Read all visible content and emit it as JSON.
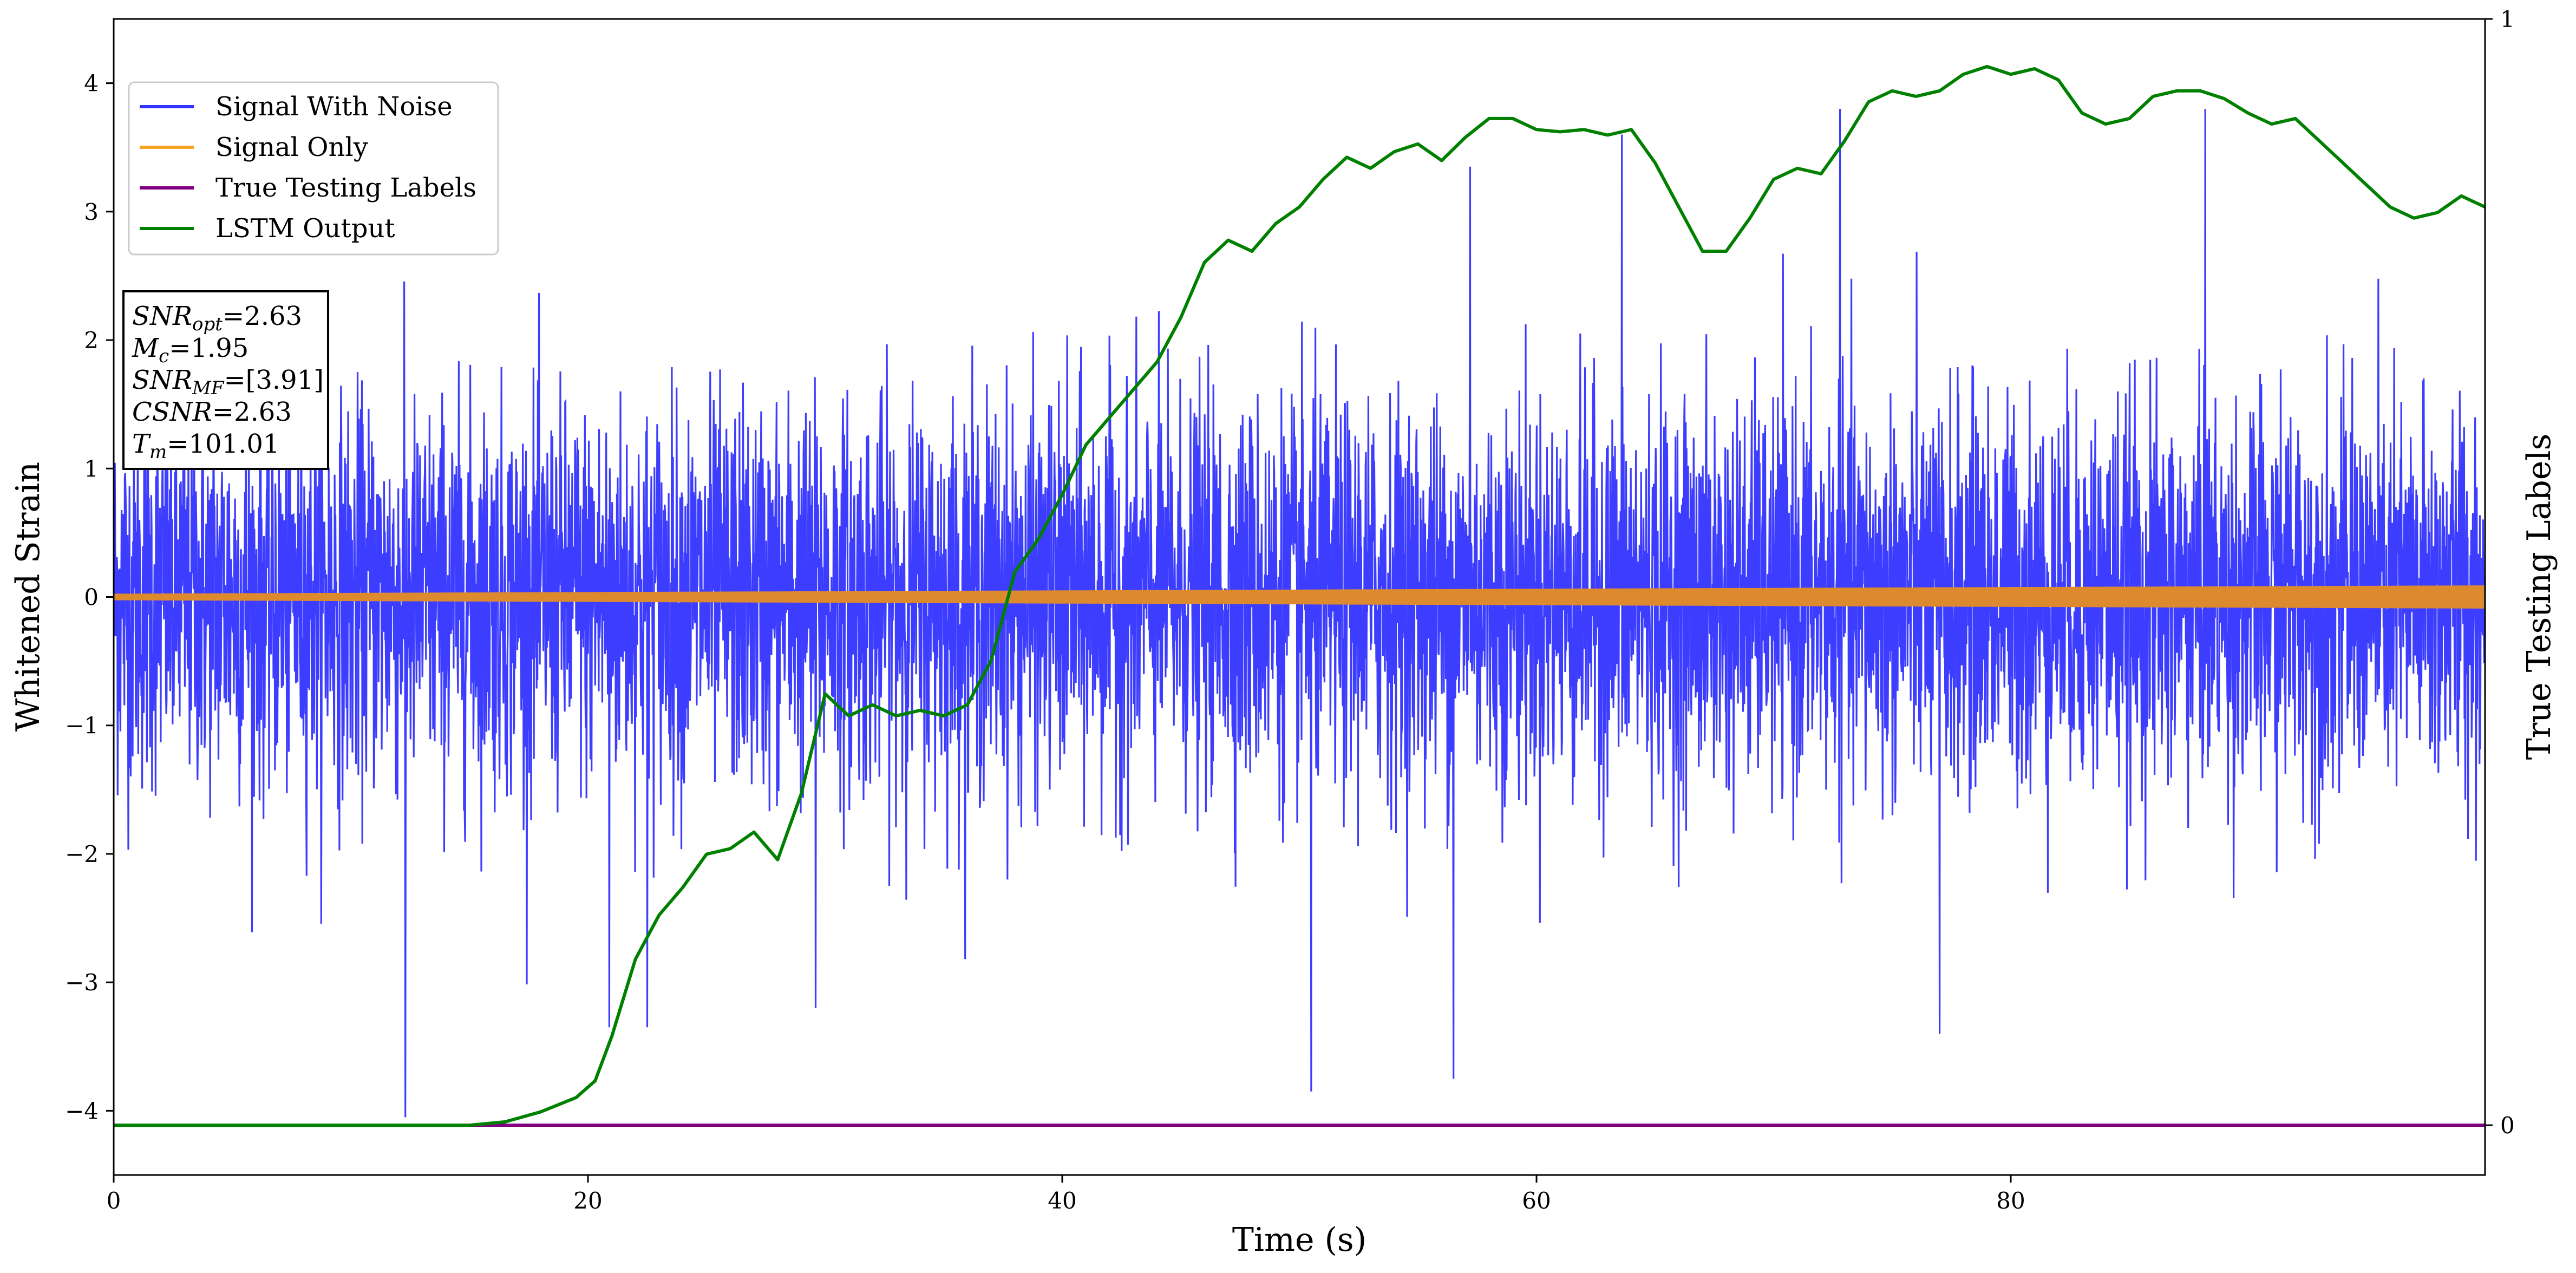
{
  "chart_data": {
    "type": "line",
    "title": "",
    "xlabel": "Time (s)",
    "ylabel": "Whitened Strain",
    "ylabel_right": "True Testing Labels",
    "xlim": [
      0,
      100
    ],
    "ylim": [
      -4.5,
      4.5
    ],
    "ylim_right": [
      -0.045,
      1.0
    ],
    "xticks": [
      0,
      20,
      40,
      60,
      80
    ],
    "yticks": [
      -4,
      -3,
      -2,
      -1,
      0,
      1,
      2,
      3,
      4
    ],
    "yticks_right": [
      0,
      1
    ],
    "grid": false,
    "legend_position": "top-left",
    "series": [
      {
        "name": "Signal With Noise",
        "color": "#3333ff",
        "axis": "left",
        "noise": {
          "t_start": 0,
          "t_end": 100,
          "std": 0.75,
          "min": -4.05,
          "max": 3.8
        },
        "notable_spikes": [
          {
            "x": 12.3,
            "y": -4.05
          },
          {
            "x": 20.9,
            "y": -3.35
          },
          {
            "x": 22.5,
            "y": -3.35
          },
          {
            "x": 29.6,
            "y": -3.2
          },
          {
            "x": 50.5,
            "y": -3.85
          },
          {
            "x": 56.5,
            "y": -3.75
          },
          {
            "x": 57.2,
            "y": 3.35
          },
          {
            "x": 63.6,
            "y": 3.6
          },
          {
            "x": 72.8,
            "y": 3.8
          },
          {
            "x": 77.0,
            "y": -3.4
          },
          {
            "x": 88.2,
            "y": 3.8
          }
        ]
      },
      {
        "name": "Signal Only",
        "color": "#f5a623",
        "axis": "left",
        "amplitude_start": 0.025,
        "amplitude_end": 0.09
      },
      {
        "name": "True Testing Labels",
        "color": "#800080",
        "axis": "right",
        "x": [
          0,
          100
        ],
        "values": [
          0,
          0
        ]
      },
      {
        "name": "LSTM Output",
        "color": "#008000",
        "axis": "right",
        "x": [
          0,
          10,
          15,
          16.5,
          18,
          19.5,
          20.3,
          21,
          22,
          23,
          24,
          25,
          26,
          27,
          28,
          29,
          30,
          31,
          32,
          33,
          34,
          35,
          36,
          37,
          38,
          39,
          40,
          41,
          42,
          43,
          44,
          45,
          46,
          47,
          48,
          49,
          50,
          51,
          52,
          53,
          54,
          55,
          56,
          57,
          58,
          59,
          60,
          61,
          62,
          63,
          64,
          65,
          66,
          67,
          68,
          69,
          70,
          71,
          72,
          73,
          74,
          75,
          76,
          77,
          78,
          79,
          80,
          81,
          82,
          83,
          84,
          85,
          86,
          87,
          88,
          89,
          90,
          91,
          92,
          93,
          94,
          95,
          96,
          97,
          98,
          99,
          100
        ],
        "values": [
          0,
          0,
          0,
          0.003,
          0.012,
          0.025,
          0.04,
          0.08,
          0.15,
          0.19,
          0.215,
          0.245,
          0.25,
          0.265,
          0.24,
          0.3,
          0.39,
          0.37,
          0.38,
          0.37,
          0.375,
          0.37,
          0.38,
          0.42,
          0.5,
          0.53,
          0.57,
          0.615,
          0.64,
          0.665,
          0.69,
          0.73,
          0.78,
          0.8,
          0.79,
          0.815,
          0.83,
          0.855,
          0.875,
          0.865,
          0.88,
          0.887,
          0.872,
          0.893,
          0.91,
          0.91,
          0.9,
          0.898,
          0.9,
          0.895,
          0.9,
          0.87,
          0.83,
          0.79,
          0.79,
          0.82,
          0.855,
          0.865,
          0.86,
          0.89,
          0.925,
          0.935,
          0.93,
          0.935,
          0.95,
          0.957,
          0.95,
          0.955,
          0.945,
          0.915,
          0.905,
          0.91,
          0.93,
          0.935,
          0.935,
          0.928,
          0.915,
          0.905,
          0.91,
          0.89,
          0.87,
          0.85,
          0.83,
          0.82,
          0.825,
          0.84,
          0.83
        ]
      }
    ],
    "annotation": {
      "lines": [
        {
          "prefix": "SNR",
          "sub": "opt",
          "suffix": "=2.63"
        },
        {
          "prefix": "M",
          "sub": "c",
          "suffix": "=1.95"
        },
        {
          "prefix": "SNR",
          "sub": "MF",
          "suffix": "=[3.91]"
        },
        {
          "prefix": "CSNR",
          "sub": "",
          "suffix": "=2.63"
        },
        {
          "prefix": "T",
          "sub": "m",
          "suffix": "=101.01"
        }
      ]
    }
  }
}
